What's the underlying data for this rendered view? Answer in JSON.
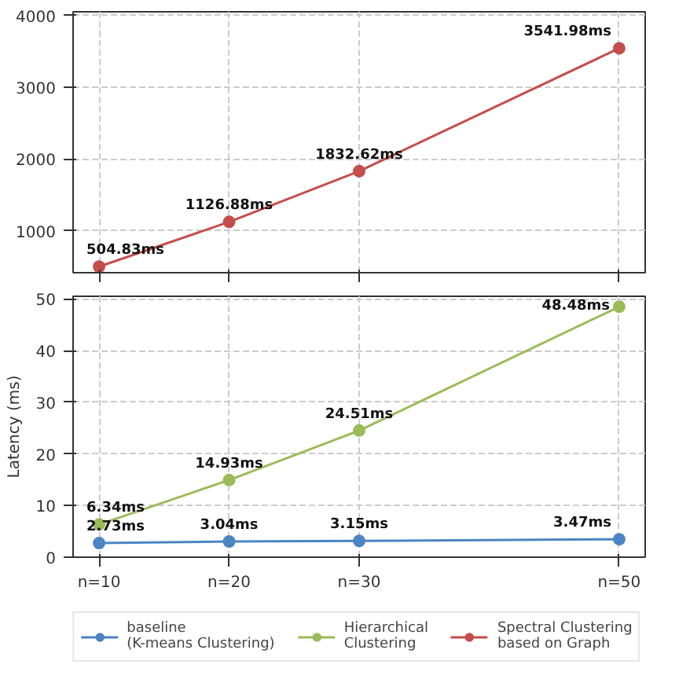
{
  "chart_data": [
    {
      "type": "line",
      "x": [
        10,
        20,
        30,
        50
      ],
      "xlim": [
        8,
        52
      ],
      "xticks": [
        {
          "value": 10,
          "label": null
        },
        {
          "value": 20,
          "label": null
        },
        {
          "value": 30,
          "label": null
        },
        {
          "value": 50,
          "label": null
        }
      ],
      "ylim": [
        420,
        4050
      ],
      "yticks": [
        1000,
        2000,
        3000,
        4000
      ],
      "tick_labels": "y",
      "grid": true,
      "marker": "circle",
      "legend": "bottom",
      "series": [
        {
          "name": "Spectral Clustering\nbased on Graph",
          "color": "#c44e4c",
          "values": [
            504.83,
            1126.88,
            1832.62,
            3541.98
          ],
          "value_labels": [
            "504.83ms",
            "1126.88ms",
            "1832.62ms",
            "3541.98ms"
          ]
        }
      ]
    },
    {
      "type": "line",
      "x": [
        10,
        20,
        30,
        50
      ],
      "xlim": [
        8,
        52
      ],
      "xticks": [
        {
          "value": 10,
          "label": "n=10"
        },
        {
          "value": 20,
          "label": "n=20"
        },
        {
          "value": 30,
          "label": "n=30"
        },
        {
          "value": 50,
          "label": "n=50"
        }
      ],
      "ylim": [
        0,
        50.5
      ],
      "yticks": [
        0,
        10,
        20,
        30,
        40,
        50
      ],
      "ylabel": "Latency (ms)",
      "grid": true,
      "marker": "circle",
      "legend": "bottom",
      "series": [
        {
          "name": "baseline\n(K-means Clustering)",
          "color": "#4c84c4",
          "values": [
            2.73,
            3.04,
            3.15,
            3.47
          ],
          "value_labels": [
            "2.73ms",
            "3.04ms",
            "3.15ms",
            "3.47ms"
          ]
        },
        {
          "name": "Hierarchical\nClustering",
          "color": "#9bbb59",
          "values": [
            6.34,
            14.93,
            24.51,
            48.48
          ],
          "value_labels": [
            "6.34ms",
            "14.93ms",
            "24.51ms",
            "48.48ms"
          ]
        }
      ]
    }
  ]
}
